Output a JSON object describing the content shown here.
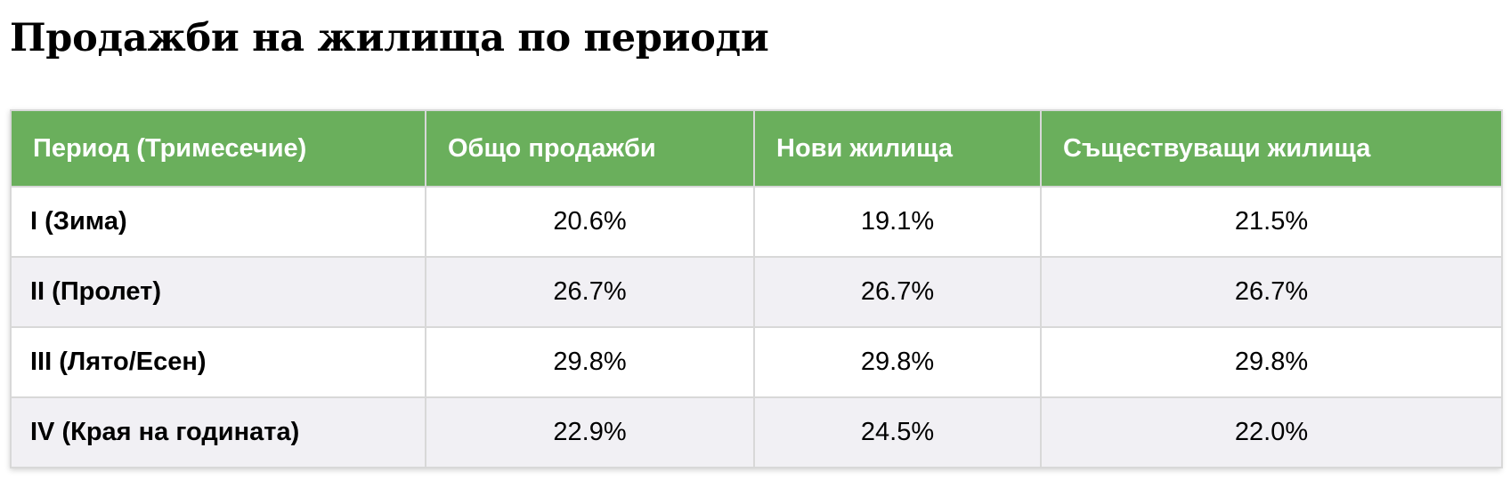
{
  "title": "Продажби на жилища по периоди",
  "table": {
    "headers": [
      "Период (Тримесечие)",
      "Общо продажби",
      "Нови жилища",
      "Съществуващи жилища"
    ],
    "rows": [
      [
        "I (Зима)",
        "20.6%",
        "19.1%",
        "21.5%"
      ],
      [
        "II (Пролет)",
        "26.7%",
        "26.7%",
        "26.7%"
      ],
      [
        "III (Лято/Есен)",
        "29.8%",
        "29.8%",
        "29.8%"
      ],
      [
        "IV (Края на годината)",
        "22.9%",
        "24.5%",
        "22.0%"
      ]
    ]
  },
  "colors": {
    "header_background": "#6aaf5c",
    "header_text": "#ffffff",
    "alt_row_background": "#f1f0f4",
    "grid_line": "#d8d8d8"
  }
}
